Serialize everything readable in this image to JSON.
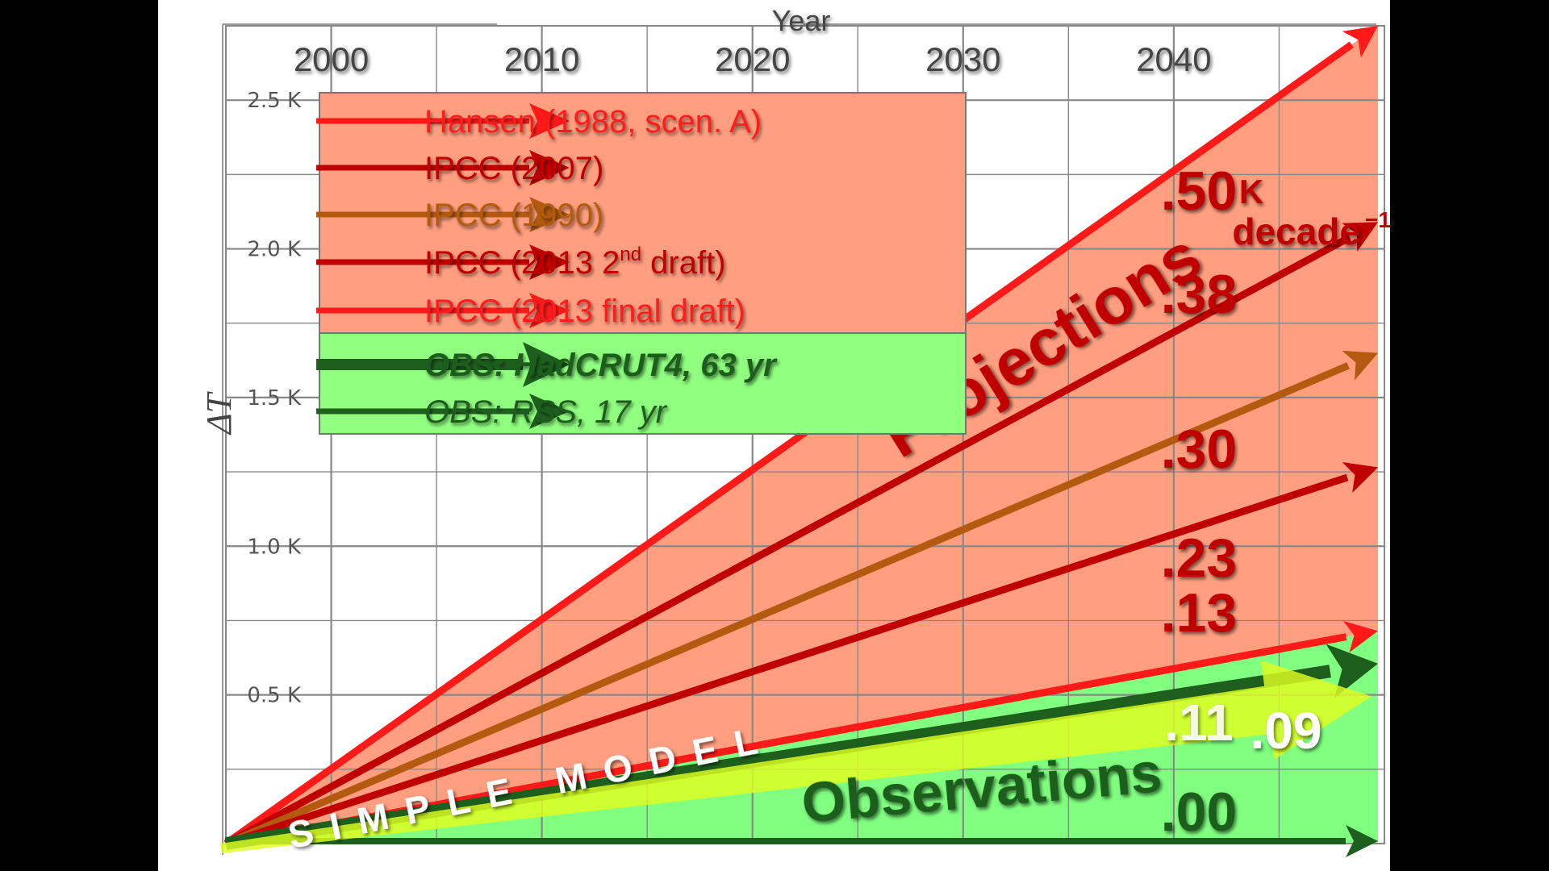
{
  "chart_data": {
    "type": "line",
    "title": "",
    "xlabel": "Year",
    "ylabel": "ΔT",
    "x_ticks": [
      "2000",
      "2010",
      "2020",
      "2030",
      "2040"
    ],
    "y_ticks": [
      "0.5 K",
      "1.0 K",
      "1.5 K",
      "2.0 K",
      "2.5 K"
    ],
    "xlim": [
      1995,
      2050
    ],
    "ylim": [
      0,
      2.75
    ],
    "grid": true,
    "legend_position": "top-left",
    "series": [
      {
        "name": "Hansen (1988, scen. A)",
        "rate": 0.5,
        "label": ".50",
        "color": "#ff1a1a"
      },
      {
        "name": "IPCC (2007)",
        "rate": 0.38,
        "label": ".38",
        "color": "#c00000"
      },
      {
        "name": "IPCC (1990)",
        "rate": 0.3,
        "label": ".30",
        "color": "#b35a10"
      },
      {
        "name": "IPCC (2013 2nd draft)",
        "rate": 0.23,
        "label": ".23",
        "color": "#c00000"
      },
      {
        "name": "IPCC (2013 final draft)",
        "rate": 0.13,
        "label": ".13",
        "color": "#ff1a1a"
      },
      {
        "name": "OBS: HadCRUT4, 63 yr",
        "rate": 0.11,
        "label": ".11",
        "color": "#1e5f1e"
      },
      {
        "name": "SIMPLE MODEL",
        "rate": 0.09,
        "label": ".09",
        "color": "#e0ff20"
      },
      {
        "name": "OBS: RSS, 17 yr",
        "rate": 0.0,
        "label": ".00",
        "color": "#1e5f1e"
      }
    ],
    "annotations": {
      "projections": "Projections",
      "observations": "Observations",
      "simple_model": "SIMPLE MODEL",
      "unit_k": "K",
      "unit_decade": "decade",
      "unit_exp": "−1"
    },
    "legend": [
      {
        "name": "Hansen (1988, scen. A)",
        "color": "#ff1a1a",
        "style": "normal"
      },
      {
        "name": "IPCC (2007)",
        "color": "#c00000",
        "style": "normal"
      },
      {
        "name": "IPCC (1990)",
        "color": "#b35a10",
        "style": "normal"
      },
      {
        "name": "IPCC (2013 2nd draft)",
        "color": "#c00000",
        "style": "sup"
      },
      {
        "name": "IPCC (2013 final draft)",
        "color": "#ff1a1a",
        "style": "normal"
      },
      {
        "name": "OBS: HadCRUT4, 63 yr",
        "color": "#1e5f1e",
        "style": "bold-italic"
      },
      {
        "name": "OBS: RSS, 17 yr",
        "color": "#1e5f1e",
        "style": "italic"
      }
    ],
    "colors": {
      "projection_fill": "#ff9f80",
      "observation_fill": "#80ff80",
      "legend_projection_bg": "#ff9f80",
      "legend_obs_bg": "#90ff80",
      "grid": "#888888"
    }
  }
}
